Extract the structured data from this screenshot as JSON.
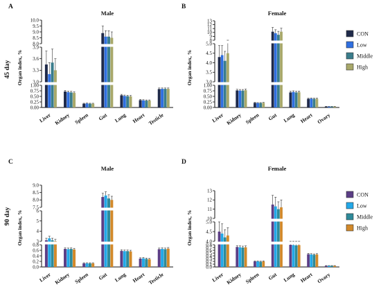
{
  "row_labels": [
    "45 day",
    "90 day"
  ],
  "legends": [
    {
      "items": [
        {
          "label": "CON",
          "color": "#1f2a4a"
        },
        {
          "label": "Low",
          "color": "#2f6fe0"
        },
        {
          "label": "Middle",
          "color": "#3a7d8c"
        },
        {
          "label": "High",
          "color": "#a8a86a"
        }
      ]
    },
    {
      "items": [
        {
          "label": "CON",
          "color": "#5b3e86"
        },
        {
          "label": "Low",
          "color": "#22a8e8"
        },
        {
          "label": "Middle",
          "color": "#2e8a9a"
        },
        {
          "label": "High",
          "color": "#d2892a"
        }
      ]
    }
  ],
  "chart_data": [
    {
      "panel": "A",
      "title": "Male",
      "type": "bar",
      "ylabel": "Organ index, %",
      "categories": [
        "Liver",
        "Kidney",
        "Spleen",
        "Gut",
        "Lung",
        "Heart",
        "Testicle"
      ],
      "segments": [
        {
          "range": [
            0,
            1.0
          ],
          "ticks": [
            "0.00",
            "0.25",
            "0.50",
            "0.75",
            "1.00"
          ]
        },
        {
          "range": [
            3.0,
            3.9
          ],
          "ticks": [
            "3.0",
            "3.3",
            "3.6",
            "3.9"
          ]
        },
        {
          "range": [
            8.0,
            10.0
          ],
          "ticks": [
            "8.0",
            "8.5",
            "9.0",
            "9.5",
            "10.0"
          ]
        }
      ],
      "series": [
        {
          "name": "CON",
          "values": [
            3.45,
            0.72,
            0.17,
            8.9,
            0.55,
            0.33,
            0.83
          ],
          "errors": [
            0.35,
            0.05,
            0.02,
            0.6,
            0.04,
            0.03,
            0.05
          ]
        },
        {
          "name": "Low",
          "values": [
            3.2,
            0.69,
            0.18,
            8.6,
            0.52,
            0.32,
            0.84
          ],
          "errors": [
            0.3,
            0.05,
            0.02,
            0.5,
            0.04,
            0.03,
            0.04
          ]
        },
        {
          "name": "Middle",
          "values": [
            3.5,
            0.68,
            0.17,
            8.6,
            0.51,
            0.31,
            0.84
          ],
          "errors": [
            0.35,
            0.05,
            0.02,
            0.5,
            0.04,
            0.03,
            0.04
          ]
        },
        {
          "name": "High",
          "values": [
            3.3,
            0.66,
            0.17,
            8.5,
            0.5,
            0.31,
            0.84
          ],
          "errors": [
            0.3,
            0.05,
            0.02,
            0.5,
            0.04,
            0.03,
            0.04
          ]
        }
      ]
    },
    {
      "panel": "B",
      "title": "Female",
      "type": "bar",
      "ylabel": "Organ index, %",
      "categories": [
        "Liver",
        "Kidney",
        "Spleen",
        "Gut",
        "Lung",
        "Heart",
        "Ovary"
      ],
      "segments": [
        {
          "range": [
            0,
            1.0
          ],
          "ticks": [
            "0.00",
            "0.25",
            "0.50",
            "0.75",
            "1.00"
          ]
        },
        {
          "range": [
            3.0,
            5.0
          ],
          "ticks": [
            "3.0",
            "3.5",
            "4.0",
            "4.5",
            "5.0"
          ]
        },
        {
          "range": [
            8,
            13
          ],
          "ticks": [
            "8",
            "9",
            "10",
            "11",
            "12",
            "13"
          ]
        }
      ],
      "series": [
        {
          "name": "CON",
          "values": [
            4.3,
            0.77,
            0.21,
            10.2,
            0.68,
            0.39,
            0.04
          ],
          "errors": [
            0.6,
            0.05,
            0.02,
            1.1,
            0.05,
            0.03,
            0.01
          ]
        },
        {
          "name": "Low",
          "values": [
            4.4,
            0.76,
            0.2,
            9.8,
            0.7,
            0.4,
            0.04
          ],
          "errors": [
            0.5,
            0.05,
            0.02,
            0.9,
            0.05,
            0.03,
            0.01
          ]
        },
        {
          "name": "Middle",
          "values": [
            4.1,
            0.76,
            0.2,
            9.4,
            0.68,
            0.39,
            0.04
          ],
          "errors": [
            0.5,
            0.05,
            0.02,
            0.9,
            0.05,
            0.03,
            0.01
          ]
        },
        {
          "name": "High",
          "values": [
            4.5,
            0.78,
            0.21,
            10.2,
            0.69,
            0.39,
            0.04
          ],
          "errors": [
            0.6,
            0.05,
            0.02,
            0.9,
            0.05,
            0.03,
            0.01
          ]
        }
      ]
    },
    {
      "panel": "C",
      "title": "Male",
      "type": "bar",
      "ylabel": "Organ index, %",
      "categories": [
        "Liver",
        "Kidney",
        "Spleen",
        "Gut",
        "Lung",
        "Heart",
        "Testicle"
      ],
      "segments": [
        {
          "range": [
            0,
            0.8
          ],
          "ticks": [
            "0.0",
            "0.2",
            "0.4",
            "0.6",
            "0.8"
          ]
        },
        {
          "range": [
            3,
            6
          ],
          "ticks": [
            "3",
            "4",
            "5",
            "6"
          ]
        },
        {
          "range": [
            7.5,
            9.0
          ],
          "ticks": [
            "7.5",
            "8.0",
            "8.5",
            "9.0"
          ]
        }
      ],
      "series": [
        {
          "name": "CON",
          "values": [
            3.1,
            0.65,
            0.13,
            8.2,
            0.58,
            0.3,
            0.64
          ],
          "errors": [
            0.2,
            0.04,
            0.02,
            0.25,
            0.04,
            0.03,
            0.04
          ]
        },
        {
          "name": "Low",
          "values": [
            3.3,
            0.64,
            0.13,
            8.3,
            0.57,
            0.31,
            0.65
          ],
          "errors": [
            0.2,
            0.04,
            0.02,
            0.25,
            0.04,
            0.03,
            0.04
          ]
        },
        {
          "name": "Middle",
          "values": [
            3.1,
            0.65,
            0.13,
            8.1,
            0.57,
            0.29,
            0.64
          ],
          "errors": [
            0.2,
            0.04,
            0.02,
            0.25,
            0.04,
            0.03,
            0.04
          ]
        },
        {
          "name": "High",
          "values": [
            3.0,
            0.63,
            0.13,
            8.0,
            0.56,
            0.28,
            0.66
          ],
          "errors": [
            0.2,
            0.04,
            0.02,
            0.25,
            0.04,
            0.03,
            0.04
          ]
        }
      ]
    },
    {
      "panel": "D",
      "title": "Female",
      "type": "bar",
      "ylabel": "Organ index, %",
      "categories": [
        "Liver",
        "Kidney",
        "Spleen",
        "Gut",
        "Lung",
        "Heart",
        "Ovary"
      ],
      "segments": [
        {
          "range": [
            0,
            0.8
          ],
          "ticks": [
            "0.0",
            "0.1",
            "0.2",
            "0.3",
            "0.4",
            "0.5",
            "0.6",
            "0.7",
            "0.8"
          ]
        },
        {
          "range": [
            4.0,
            5.0
          ],
          "ticks": [
            "4.0",
            "4.5",
            "5.0"
          ]
        },
        {
          "range": [
            10,
            13
          ],
          "ticks": [
            "10",
            "11",
            "12",
            "13"
          ]
        }
      ],
      "series": [
        {
          "name": "CON",
          "values": [
            4.5,
            0.72,
            0.2,
            11.5,
            0.8,
            0.46,
            0.04
          ],
          "errors": [
            0.5,
            0.05,
            0.02,
            1.0,
            0.05,
            0.03,
            0.01
          ]
        },
        {
          "name": "Low",
          "values": [
            4.4,
            0.71,
            0.2,
            11.3,
            0.79,
            0.45,
            0.04
          ],
          "errors": [
            0.5,
            0.05,
            0.02,
            1.0,
            0.05,
            0.03,
            0.01
          ]
        },
        {
          "name": "Middle",
          "values": [
            4.2,
            0.7,
            0.19,
            11.0,
            0.78,
            0.44,
            0.04
          ],
          "errors": [
            0.4,
            0.05,
            0.02,
            0.8,
            0.05,
            0.03,
            0.01
          ]
        },
        {
          "name": "High",
          "values": [
            4.3,
            0.71,
            0.2,
            11.2,
            0.79,
            0.45,
            0.04
          ],
          "errors": [
            0.4,
            0.05,
            0.02,
            0.8,
            0.05,
            0.03,
            0.01
          ]
        }
      ]
    }
  ]
}
